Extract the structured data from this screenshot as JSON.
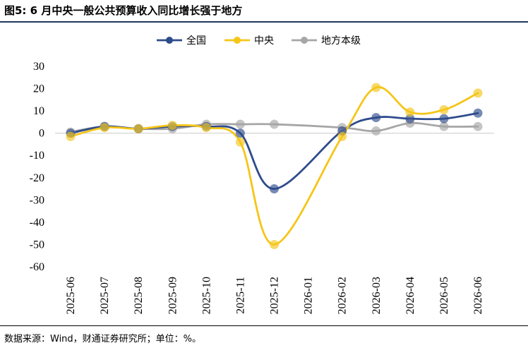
{
  "figure": {
    "title": "图5: 6 月中央一般公共预算收入同比增长强于地方",
    "source": "数据来源：Wind，财通证券研究所；单位：%。"
  },
  "chart_data": {
    "type": "line",
    "smooth": true,
    "title": "",
    "xlabel": "",
    "ylabel": "",
    "ylim": [
      -60,
      30
    ],
    "yticks": [
      30,
      20,
      10,
      0,
      -10,
      -20,
      -30,
      -40,
      -50,
      -60
    ],
    "grid": false,
    "legend_position": "top-center",
    "categories": [
      "2025-06",
      "2025-07",
      "2025-08",
      "2025-09",
      "2025-10",
      "2025-11",
      "2025-12",
      "2026-01",
      "2026-02",
      "2026-03",
      "2026-04",
      "2026-05",
      "2026-06"
    ],
    "series": [
      {
        "name": "全国",
        "color": "#2e4b8b",
        "values": [
          0,
          3,
          2,
          3,
          3,
          0,
          -25,
          null,
          1,
          7,
          6.5,
          6.5,
          9
        ]
      },
      {
        "name": "中央",
        "color": "#f5c518",
        "values": [
          -1.5,
          2.5,
          2,
          3.5,
          2.5,
          -4,
          -50,
          null,
          -1.5,
          20.5,
          9.5,
          10.5,
          18
        ]
      },
      {
        "name": "地方本级",
        "color": "#a6a6a6",
        "values": [
          0.5,
          3,
          2,
          2,
          4,
          4,
          4,
          null,
          2.5,
          1,
          4.5,
          3,
          3
        ]
      }
    ]
  }
}
